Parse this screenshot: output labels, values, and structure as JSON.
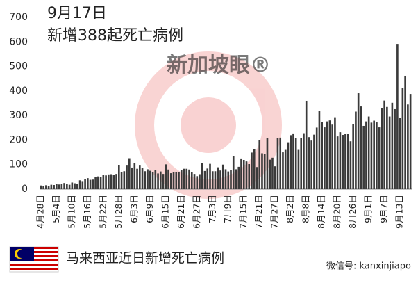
{
  "chart_data": {
    "type": "bar",
    "title": "9月17日",
    "subtitle": "新增388起死亡病例",
    "watermark": "新加坡眼®",
    "caption": "马来西亚近日新增死亡病例",
    "source": "微信号: kanxinjiapo",
    "color": "#3a3a3a",
    "ylim": [
      0,
      700
    ],
    "yticks": [
      0,
      100,
      200,
      300,
      400,
      500,
      600,
      700
    ],
    "categories": [
      "4月28日",
      null,
      null,
      null,
      null,
      null,
      "5月4日",
      null,
      null,
      null,
      null,
      null,
      "5月10日",
      null,
      null,
      null,
      null,
      null,
      "5月16日",
      null,
      null,
      null,
      null,
      null,
      "5月22日",
      null,
      null,
      null,
      null,
      null,
      "5月28日",
      null,
      null,
      null,
      null,
      null,
      "6月3日",
      null,
      null,
      null,
      null,
      null,
      "6月9日",
      null,
      null,
      null,
      null,
      null,
      "6月15日",
      null,
      null,
      null,
      null,
      null,
      "6月21日",
      null,
      null,
      null,
      null,
      null,
      "6月27日",
      null,
      null,
      null,
      null,
      null,
      "7月3日",
      null,
      null,
      null,
      null,
      null,
      "7月9日",
      null,
      null,
      null,
      null,
      null,
      "7月15日",
      null,
      null,
      null,
      null,
      null,
      "7月21日",
      null,
      null,
      null,
      null,
      null,
      "7月27日",
      null,
      null,
      null,
      null,
      null,
      "8月2日",
      null,
      null,
      null,
      null,
      null,
      "8月8日",
      null,
      null,
      null,
      null,
      null,
      "8月14日",
      null,
      null,
      null,
      null,
      null,
      "8月20日",
      null,
      null,
      null,
      null,
      null,
      "8月26日",
      null,
      null,
      null,
      null,
      null,
      "9月1日",
      null,
      null,
      null,
      null,
      null,
      "9月7日",
      null,
      null,
      null,
      null,
      null,
      "9月13日",
      null,
      null,
      null,
      null
    ],
    "values": [
      15,
      13,
      16,
      14,
      18,
      17,
      20,
      19,
      22,
      25,
      21,
      18,
      27,
      24,
      20,
      36,
      30,
      41,
      45,
      38,
      39,
      50,
      52,
      49,
      58,
      56,
      60,
      61,
      59,
      62,
      98,
      70,
      73,
      96,
      126,
      88,
      107,
      83,
      96,
      85,
      73,
      81,
      75,
      68,
      78,
      64,
      72,
      62,
      101,
      80,
      65,
      68,
      70,
      69,
      78,
      83,
      83,
      80,
      68,
      62,
      53,
      61,
      105,
      74,
      84,
      103,
      73,
      73,
      89,
      76,
      100,
      81,
      72,
      78,
      134,
      81,
      91,
      125,
      119,
      113,
      102,
      149,
      162,
      90,
      199,
      146,
      144,
      207,
      120,
      128,
      93,
      207,
      210,
      150,
      160,
      191,
      220,
      227,
      208,
      160,
      208,
      228,
      360,
      212,
      198,
      222,
      251,
      318,
      274,
      252,
      276,
      280,
      263,
      293,
      215,
      232,
      221,
      224,
      224,
      195,
      265,
      316,
      391,
      337,
      258,
      276,
      296,
      271,
      279,
      272,
      252,
      331,
      361,
      335,
      296,
      352,
      326,
      592,
      290,
      412,
      462,
      345,
      388
    ]
  }
}
